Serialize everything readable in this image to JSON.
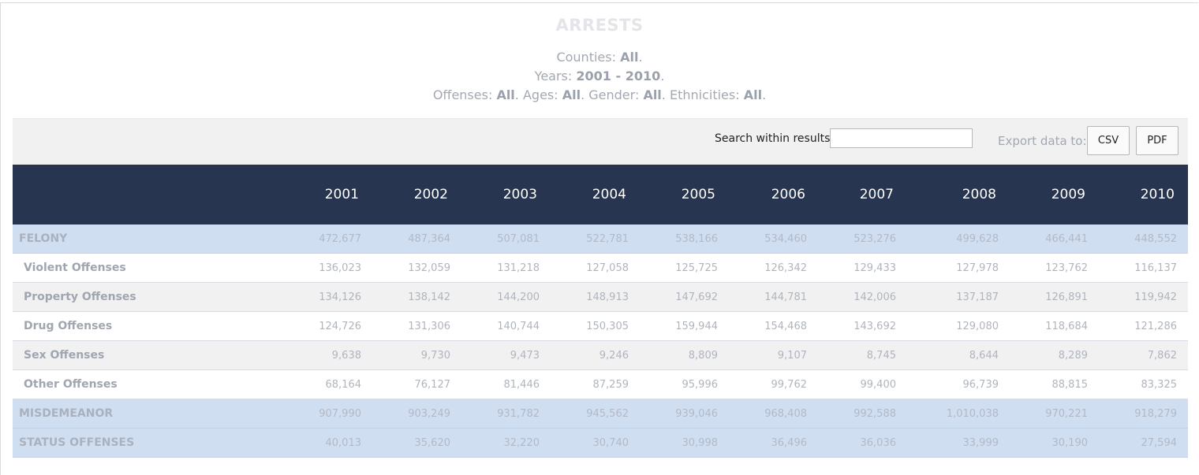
{
  "title": "ARRESTS",
  "filters": {
    "counties_label": "Counties:",
    "counties_value": "All",
    "years_label": "Years:",
    "years_value": "2001 - 2010",
    "offenses_label": "Offenses:",
    "offenses_value": "All",
    "ages_label": "Ages:",
    "ages_value": "All",
    "gender_label": "Gender:",
    "gender_value": "All",
    "ethnicities_label": "Ethnicities:",
    "ethnicities_value": "All"
  },
  "toolbar": {
    "search_label": "Search within results:",
    "search_value": "",
    "export_label": "Export data to:",
    "csv_label": "CSV",
    "pdf_label": "PDF"
  },
  "table": {
    "header_label": "",
    "years": [
      "2001",
      "2002",
      "2003",
      "2004",
      "2005",
      "2006",
      "2007",
      "2008",
      "2009",
      "2010"
    ],
    "rows": [
      {
        "label": "FELONY",
        "kind": "hl",
        "values": [
          "472,677",
          "487,364",
          "507,081",
          "522,781",
          "538,166",
          "534,460",
          "523,276",
          "499,628",
          "466,441",
          "448,552"
        ]
      },
      {
        "label": "Violent Offenses",
        "kind": "plain",
        "values": [
          "136,023",
          "132,059",
          "131,218",
          "127,058",
          "125,725",
          "126,342",
          "129,433",
          "127,978",
          "123,762",
          "116,137"
        ]
      },
      {
        "label": "Property Offenses",
        "kind": "alt",
        "values": [
          "134,126",
          "138,142",
          "144,200",
          "148,913",
          "147,692",
          "144,781",
          "142,006",
          "137,187",
          "126,891",
          "119,942"
        ]
      },
      {
        "label": "Drug Offenses",
        "kind": "plain",
        "values": [
          "124,726",
          "131,306",
          "140,744",
          "150,305",
          "159,944",
          "154,468",
          "143,692",
          "129,080",
          "118,684",
          "121,286"
        ]
      },
      {
        "label": "Sex Offenses",
        "kind": "alt",
        "values": [
          "9,638",
          "9,730",
          "9,473",
          "9,246",
          "8,809",
          "9,107",
          "8,745",
          "8,644",
          "8,289",
          "7,862"
        ]
      },
      {
        "label": "Other Offenses",
        "kind": "plain",
        "values": [
          "68,164",
          "76,127",
          "81,446",
          "87,259",
          "95,996",
          "99,762",
          "99,400",
          "96,739",
          "88,815",
          "83,325"
        ]
      },
      {
        "label": "MISDEMEANOR",
        "kind": "hl",
        "values": [
          "907,990",
          "903,249",
          "931,782",
          "945,562",
          "939,046",
          "968,408",
          "992,588",
          "1,010,038",
          "970,221",
          "918,279"
        ]
      },
      {
        "label": "STATUS OFFENSES",
        "kind": "hl",
        "values": [
          "40,013",
          "35,620",
          "32,220",
          "30,740",
          "30,998",
          "36,496",
          "36,036",
          "33,999",
          "30,190",
          "27,594"
        ]
      }
    ]
  }
}
